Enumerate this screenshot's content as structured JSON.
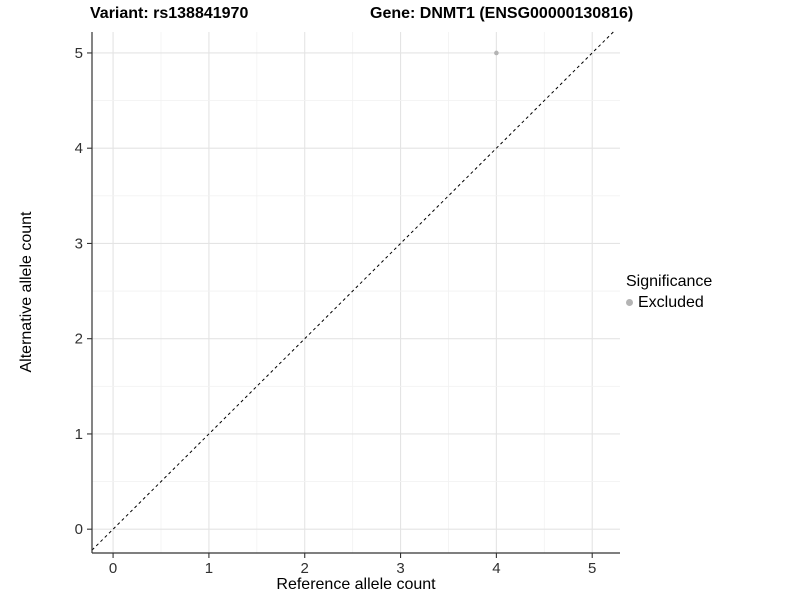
{
  "titles": {
    "variant": "Variant: rs138841970",
    "gene": "Gene: DNMT1 (ENSG00000130816)"
  },
  "legend": {
    "title": "Significance",
    "items": [
      {
        "label": "Excluded",
        "marker": "dot-icon",
        "color": "#b4b4b4"
      }
    ]
  },
  "colors": {
    "background": "#ffffff",
    "major_grid": "#e4e4e4",
    "minor_grid": "#f2f2f2",
    "axis_line": "#333333",
    "tick_label": "#303030",
    "point": "#b4b4b4",
    "reference_line": "#000000"
  },
  "chart_data": {
    "type": "scatter",
    "title": "Variant: rs138841970   Gene: DNMT1 (ENSG00000130816)",
    "xlabel": "Reference allele count",
    "ylabel": "Alternative allele count",
    "xlim": [
      -0.22,
      5.29
    ],
    "ylim": [
      -0.25,
      5.22
    ],
    "x_ticks": [
      0,
      1,
      2,
      3,
      4,
      5
    ],
    "y_ticks": [
      0,
      1,
      2,
      3,
      4,
      5
    ],
    "minor_grid_step": 0.5,
    "grid": true,
    "legend_position": "right",
    "series": [
      {
        "name": "Excluded",
        "color": "#b4b4b4",
        "points": [
          {
            "x": 4,
            "y": 5
          }
        ]
      }
    ],
    "reference_line": {
      "type": "identity y=x",
      "style": "dashed",
      "color": "#000000"
    }
  }
}
